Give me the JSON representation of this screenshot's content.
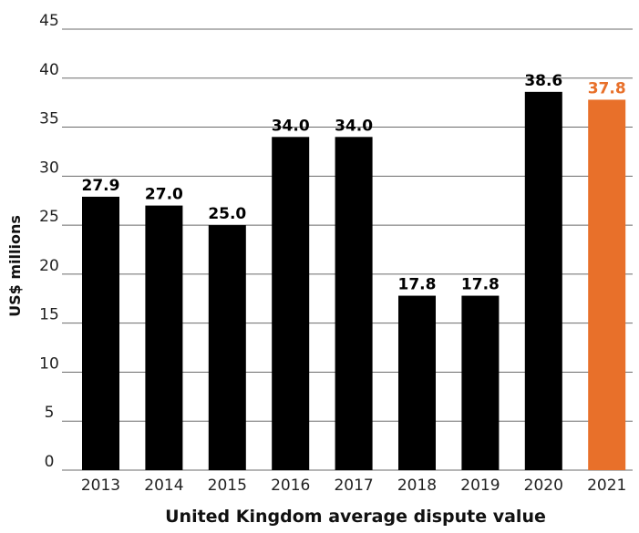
{
  "chart_data": {
    "type": "bar",
    "categories": [
      "2013",
      "2014",
      "2015",
      "2016",
      "2017",
      "2018",
      "2019",
      "2020",
      "2021"
    ],
    "values": [
      27.9,
      27.0,
      25.0,
      34.0,
      34.0,
      17.8,
      17.8,
      38.6,
      37.8
    ],
    "value_labels": [
      "27.9",
      "27.0",
      "25.0",
      "34.0",
      "34.0",
      "17.8",
      "17.8",
      "38.6",
      "37.8"
    ],
    "bar_colors": [
      "#000000",
      "#000000",
      "#000000",
      "#000000",
      "#000000",
      "#000000",
      "#000000",
      "#000000",
      "#e8702a"
    ],
    "label_colors": [
      "#000000",
      "#000000",
      "#000000",
      "#000000",
      "#000000",
      "#000000",
      "#000000",
      "#000000",
      "#e8702a"
    ],
    "yticks": [
      0,
      5,
      10,
      15,
      20,
      25,
      30,
      35,
      40,
      45
    ],
    "ylim": [
      0,
      45
    ],
    "ylabel": "US$ millions",
    "xlabel": "United Kingdom average dispute value",
    "title": "",
    "grid": true
  }
}
